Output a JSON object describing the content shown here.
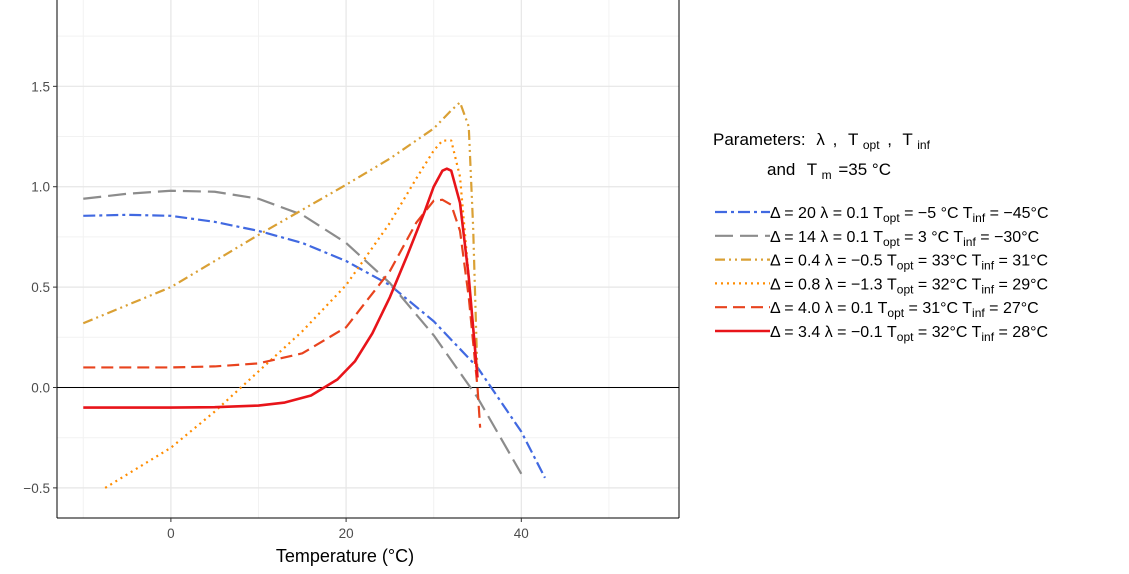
{
  "chart_data": {
    "type": "line",
    "xlabel": "Temperature (°C)",
    "ylabel": "",
    "xlim": [
      -13,
      58
    ],
    "ylim": [
      -0.65,
      1.93
    ],
    "x_ticks": [
      0,
      20,
      40
    ],
    "y_ticks": [
      -0.5,
      0.0,
      0.5,
      1.0,
      1.5
    ],
    "x_tick_labels": [
      "0",
      "20",
      "40"
    ],
    "y_tick_labels": [
      "−0.5",
      "0.0",
      "0.5",
      "1.0",
      "1.5"
    ],
    "hline": 0,
    "grid": true,
    "legend_position": "right",
    "legend_title": {
      "prefix": "Parameters:",
      "lambda": "λ",
      "sep1": ",",
      "t": "T",
      "opt_sub": "opt",
      "sep2": ",",
      "inf_sub": "inf",
      "line2_and": "and",
      "m_sub": "m",
      "m_value": "=35 °C"
    },
    "series": [
      {
        "label": {
          "p1": "Δ = 20 λ = 0.1 T",
          "s1": "opt",
          "p2": " = −5 °C T",
          "s2": "inf",
          "p3": " = −45°C"
        },
        "color": "#4169E1",
        "dash": "12,4,3,4",
        "x": [
          -10,
          -5,
          0,
          5,
          10,
          15,
          20,
          25,
          30,
          35,
          40,
          42.7
        ],
        "y": [
          0.855,
          0.86,
          0.855,
          0.825,
          0.78,
          0.72,
          0.63,
          0.51,
          0.33,
          0.1,
          -0.22,
          -0.45
        ]
      },
      {
        "label": {
          "p1": "Δ = 14 λ = 0.1 T",
          "s1": "opt",
          "p2": " = 3 °C T",
          "s2": "inf",
          "p3": " = −30°C"
        },
        "color": "#8C8C8C",
        "dash": "18,7",
        "x": [
          -10,
          -5,
          0,
          5,
          10,
          15,
          20,
          25,
          30,
          35,
          40
        ],
        "y": [
          0.94,
          0.965,
          0.98,
          0.975,
          0.94,
          0.86,
          0.72,
          0.52,
          0.26,
          -0.05,
          -0.43
        ]
      },
      {
        "label": {
          "p1": "Δ = 0.4 λ = −0.5 T",
          "s1": "opt",
          "p2": " = 33°C T",
          "s2": "inf",
          "p3": " = 31°C"
        },
        "color": "#DAA034",
        "dash": "10,4,2,4,2,4",
        "x": [
          -10,
          0,
          10,
          20,
          25,
          30,
          32,
          33,
          34,
          34.5,
          35
        ],
        "y": [
          0.32,
          0.5,
          0.76,
          1.01,
          1.14,
          1.29,
          1.38,
          1.42,
          1.3,
          0.8,
          0.05
        ]
      },
      {
        "label": {
          "p1": "Δ = 0.8 λ = −1.3 T",
          "s1": "opt",
          "p2": " = 32°C T",
          "s2": "inf",
          "p3": " = 29°C"
        },
        "color": "#FF8C00",
        "dash": "2,4",
        "x": [
          -7.5,
          0,
          5,
          10,
          15,
          20,
          25,
          28,
          30,
          31,
          32,
          33,
          34,
          35
        ],
        "y": [
          -0.5,
          -0.3,
          -0.12,
          0.08,
          0.28,
          0.51,
          0.82,
          1.04,
          1.18,
          1.23,
          1.23,
          1.05,
          0.55,
          0.05
        ]
      },
      {
        "label": {
          "p1": "Δ = 4.0 λ = 0.1 T",
          "s1": "opt",
          "p2": " = 31°C T",
          "s2": "inf",
          "p3": " = 27°C"
        },
        "color": "#E8431E",
        "dash": "12,6",
        "x": [
          -10,
          0,
          5,
          10,
          15,
          20,
          25,
          28,
          30,
          31,
          32,
          33,
          34,
          35,
          35.3
        ],
        "y": [
          0.1,
          0.1,
          0.105,
          0.12,
          0.17,
          0.3,
          0.58,
          0.82,
          0.93,
          0.935,
          0.91,
          0.78,
          0.45,
          0.0,
          -0.2
        ]
      },
      {
        "label": {
          "p1": "Δ = 3.4 λ = −0.1 T",
          "s1": "opt",
          "p2": " = 32°C T",
          "s2": "inf",
          "p3": " = 28°C"
        },
        "color": "#E8141A",
        "dash": "",
        "x": [
          -10,
          0,
          5,
          10,
          13,
          16,
          19,
          21,
          23,
          25,
          27,
          29,
          30,
          31,
          31.5,
          32,
          33,
          34,
          34.5,
          35
        ],
        "y": [
          -0.1,
          -0.1,
          -0.098,
          -0.09,
          -0.075,
          -0.04,
          0.04,
          0.13,
          0.27,
          0.45,
          0.66,
          0.88,
          1.0,
          1.08,
          1.09,
          1.08,
          0.92,
          0.55,
          0.3,
          0.05
        ]
      }
    ]
  }
}
